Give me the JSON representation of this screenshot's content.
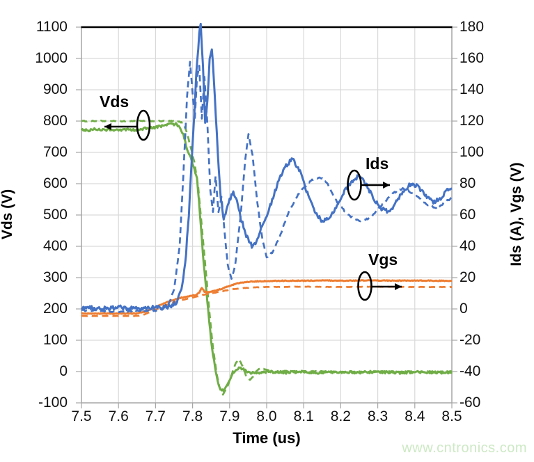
{
  "watermark": {
    "text": "www.cntronics.com",
    "color": "#cde9c5"
  },
  "chart_data": {
    "type": "line",
    "title": "",
    "xlabel": "Time (us)",
    "ylabel_left": "Vds (V)",
    "ylabel_right": "Ids (A), Vgs (V)",
    "grid": true,
    "x_range": [
      7.5,
      8.5
    ],
    "x_ticks": [
      "7.5",
      "7.6",
      "7.7",
      "7.8",
      "7.9",
      "8.0",
      "8.1",
      "8.2",
      "8.3",
      "8.4",
      "8.5"
    ],
    "left_axis": {
      "range": [
        -100,
        1100
      ],
      "ticks_top_to_bottom": [
        "1100",
        "1000",
        "900",
        "800",
        "700",
        "600",
        "500",
        "400",
        "300",
        "200",
        "100",
        "0",
        "-100"
      ]
    },
    "right_axis": {
      "range": [
        -60,
        180
      ],
      "ticks_top_to_bottom": [
        "180",
        "160",
        "140",
        "120",
        "100",
        "80",
        "60",
        "40",
        "20",
        "0",
        "-20",
        "-40",
        "-60"
      ]
    },
    "colors": {
      "vds": "#70AD47",
      "ids": "#4472C4",
      "vgs": "#ED7D31",
      "grid": "#D9D9D9",
      "axis": "#A6A6A6",
      "top_border": "#000000",
      "annotation": "#000000"
    },
    "annotations": [
      {
        "id": "vds",
        "label": "Vds",
        "arrow": "left"
      },
      {
        "id": "ids",
        "label": "Ids",
        "arrow": "right"
      },
      {
        "id": "vgs",
        "label": "Vgs",
        "arrow": "right"
      }
    ],
    "series": [
      {
        "name": "Vds dashed",
        "axis": "left",
        "color": "#70AD47",
        "style": "dashed",
        "noise": 1.5,
        "points": [
          [
            7.5,
            800
          ],
          [
            7.6,
            800
          ],
          [
            7.7,
            800
          ],
          [
            7.74,
            800
          ],
          [
            7.76,
            799
          ],
          [
            7.775,
            794
          ],
          [
            7.785,
            762
          ],
          [
            7.795,
            716
          ],
          [
            7.805,
            668
          ],
          [
            7.815,
            592
          ],
          [
            7.825,
            462
          ],
          [
            7.835,
            332
          ],
          [
            7.845,
            196
          ],
          [
            7.855,
            76
          ],
          [
            7.865,
            -6
          ],
          [
            7.873,
            -52
          ],
          [
            7.882,
            -73
          ],
          [
            7.893,
            -52
          ],
          [
            7.903,
            -18
          ],
          [
            7.915,
            24
          ],
          [
            7.925,
            39
          ],
          [
            7.935,
            18
          ],
          [
            7.945,
            -17
          ],
          [
            7.955,
            -26
          ],
          [
            7.965,
            -13
          ],
          [
            7.975,
            5
          ],
          [
            7.985,
            12
          ],
          [
            8.0,
            5
          ],
          [
            8.02,
            -4
          ],
          [
            8.05,
            2
          ],
          [
            8.1,
            0
          ],
          [
            8.15,
            1
          ],
          [
            8.2,
            -1
          ],
          [
            8.3,
            0
          ],
          [
            8.4,
            0
          ],
          [
            8.5,
            0
          ]
        ]
      },
      {
        "name": "Vds solid",
        "axis": "left",
        "color": "#70AD47",
        "style": "solid",
        "noise": 4,
        "points": [
          [
            7.5,
            774
          ],
          [
            7.52,
            770
          ],
          [
            7.54,
            775
          ],
          [
            7.56,
            771
          ],
          [
            7.58,
            774
          ],
          [
            7.6,
            769
          ],
          [
            7.62,
            773
          ],
          [
            7.64,
            771
          ],
          [
            7.66,
            775
          ],
          [
            7.68,
            777
          ],
          [
            7.7,
            779
          ],
          [
            7.72,
            786
          ],
          [
            7.74,
            791
          ],
          [
            7.755,
            790
          ],
          [
            7.765,
            783
          ],
          [
            7.775,
            757
          ],
          [
            7.785,
            712
          ],
          [
            7.795,
            681
          ],
          [
            7.805,
            646
          ],
          [
            7.812,
            616
          ],
          [
            7.82,
            505
          ],
          [
            7.83,
            345
          ],
          [
            7.84,
            220
          ],
          [
            7.85,
            100
          ],
          [
            7.858,
            32
          ],
          [
            7.868,
            -34
          ],
          [
            7.876,
            -57
          ],
          [
            7.884,
            -62
          ],
          [
            7.892,
            -48
          ],
          [
            7.9,
            -26
          ],
          [
            7.91,
            -5
          ],
          [
            7.92,
            9
          ],
          [
            7.93,
            12
          ],
          [
            7.94,
            4
          ],
          [
            7.95,
            -2
          ],
          [
            7.96,
            -5
          ],
          [
            7.98,
            -3
          ],
          [
            8.0,
            -1
          ],
          [
            8.05,
            -3
          ],
          [
            8.1,
            -1
          ],
          [
            8.15,
            -4
          ],
          [
            8.2,
            -1
          ],
          [
            8.25,
            -3
          ],
          [
            8.3,
            -1
          ],
          [
            8.35,
            -4
          ],
          [
            8.4,
            -2
          ],
          [
            8.45,
            -4
          ],
          [
            8.5,
            -2
          ]
        ]
      },
      {
        "name": "Vgs dashed",
        "axis": "right",
        "color": "#ED7D31",
        "style": "dashed",
        "noise": 0.1,
        "points": [
          [
            7.5,
            -4.5
          ],
          [
            7.6,
            -4.5
          ],
          [
            7.65,
            -4.5
          ],
          [
            7.67,
            -3.5
          ],
          [
            7.69,
            -1.5
          ],
          [
            7.71,
            0.5
          ],
          [
            7.73,
            2.5
          ],
          [
            7.75,
            4.2
          ],
          [
            7.77,
            5.5
          ],
          [
            7.79,
            6.8
          ],
          [
            7.81,
            7.8
          ],
          [
            7.83,
            9
          ],
          [
            7.85,
            10
          ],
          [
            7.87,
            10.8
          ],
          [
            7.89,
            11.8
          ],
          [
            7.91,
            12.6
          ],
          [
            7.94,
            13.4
          ],
          [
            7.97,
            13.8
          ],
          [
            8.0,
            14
          ],
          [
            8.1,
            14.2
          ],
          [
            8.2,
            14
          ],
          [
            8.3,
            14.2
          ],
          [
            8.4,
            14
          ],
          [
            8.5,
            14
          ]
        ]
      },
      {
        "name": "Vgs solid",
        "axis": "right",
        "color": "#ED7D31",
        "style": "solid",
        "noise": 0.25,
        "points": [
          [
            7.5,
            -3
          ],
          [
            7.55,
            -3
          ],
          [
            7.6,
            -3
          ],
          [
            7.63,
            -3
          ],
          [
            7.65,
            -2.8
          ],
          [
            7.67,
            -1.8
          ],
          [
            7.69,
            0
          ],
          [
            7.71,
            2.2
          ],
          [
            7.73,
            4.2
          ],
          [
            7.75,
            6
          ],
          [
            7.77,
            7.2
          ],
          [
            7.79,
            8.2
          ],
          [
            7.81,
            9
          ],
          [
            7.818,
            10.5
          ],
          [
            7.825,
            13.5
          ],
          [
            7.832,
            11
          ],
          [
            7.84,
            10.5
          ],
          [
            7.86,
            11.5
          ],
          [
            7.88,
            13
          ],
          [
            7.9,
            14.8
          ],
          [
            7.92,
            16.2
          ],
          [
            7.94,
            17
          ],
          [
            7.96,
            17.5
          ],
          [
            8.0,
            17.8
          ],
          [
            8.05,
            18
          ],
          [
            8.1,
            18
          ],
          [
            8.15,
            18.2
          ],
          [
            8.2,
            18
          ],
          [
            8.25,
            18.2
          ],
          [
            8.3,
            18.2
          ],
          [
            8.35,
            18
          ],
          [
            8.4,
            18.2
          ],
          [
            8.45,
            18
          ],
          [
            8.5,
            18
          ]
        ]
      },
      {
        "name": "Ids dashed",
        "axis": "right",
        "color": "#4472C4",
        "style": "dashed",
        "noise": 0.5,
        "points": [
          [
            7.5,
            -1
          ],
          [
            7.55,
            -1
          ],
          [
            7.6,
            -2
          ],
          [
            7.65,
            -1
          ],
          [
            7.7,
            -1
          ],
          [
            7.72,
            0
          ],
          [
            7.735,
            3
          ],
          [
            7.75,
            12
          ],
          [
            7.765,
            40
          ],
          [
            7.775,
            85
          ],
          [
            7.785,
            135
          ],
          [
            7.793,
            158
          ],
          [
            7.8,
            138
          ],
          [
            7.806,
            121
          ],
          [
            7.812,
            148
          ],
          [
            7.818,
            155
          ],
          [
            7.825,
            122
          ],
          [
            7.832,
            148
          ],
          [
            7.84,
            118
          ],
          [
            7.848,
            76
          ],
          [
            7.855,
            62
          ],
          [
            7.862,
            85
          ],
          [
            7.87,
            62
          ],
          [
            7.878,
            72
          ],
          [
            7.886,
            50
          ],
          [
            7.895,
            28
          ],
          [
            7.905,
            19
          ],
          [
            7.915,
            28
          ],
          [
            7.93,
            60
          ],
          [
            7.942,
            95
          ],
          [
            7.951,
            112
          ],
          [
            7.962,
            98
          ],
          [
            7.975,
            68
          ],
          [
            7.988,
            45
          ],
          [
            8.0,
            33
          ],
          [
            8.015,
            36
          ],
          [
            8.035,
            46
          ],
          [
            8.06,
            62
          ],
          [
            8.09,
            75
          ],
          [
            8.12,
            82
          ],
          [
            8.145,
            84
          ],
          [
            8.165,
            80
          ],
          [
            8.19,
            68
          ],
          [
            8.22,
            60
          ],
          [
            8.25,
            56
          ],
          [
            8.28,
            58
          ],
          [
            8.31,
            66
          ],
          [
            8.34,
            74
          ],
          [
            8.37,
            77
          ],
          [
            8.4,
            73
          ],
          [
            8.43,
            67
          ],
          [
            8.46,
            64
          ],
          [
            8.48,
            68
          ],
          [
            8.5,
            71
          ]
        ]
      },
      {
        "name": "Ids solid",
        "axis": "right",
        "color": "#4472C4",
        "style": "solid",
        "noise": 1.4,
        "points": [
          [
            7.5,
            1
          ],
          [
            7.55,
            0
          ],
          [
            7.6,
            1
          ],
          [
            7.65,
            0
          ],
          [
            7.7,
            1
          ],
          [
            7.72,
            1
          ],
          [
            7.74,
            2
          ],
          [
            7.755,
            4
          ],
          [
            7.77,
            12
          ],
          [
            7.78,
            28
          ],
          [
            7.79,
            60
          ],
          [
            7.8,
            105
          ],
          [
            7.81,
            150
          ],
          [
            7.818,
            176
          ],
          [
            7.822,
            182
          ],
          [
            7.828,
            156
          ],
          [
            7.834,
            118
          ],
          [
            7.84,
            132
          ],
          [
            7.846,
            160
          ],
          [
            7.852,
            167
          ],
          [
            7.86,
            136
          ],
          [
            7.868,
            100
          ],
          [
            7.876,
            72
          ],
          [
            7.884,
            58
          ],
          [
            7.892,
            64
          ],
          [
            7.9,
            70
          ],
          [
            7.91,
            74
          ],
          [
            7.92,
            68
          ],
          [
            7.93,
            58
          ],
          [
            7.945,
            47
          ],
          [
            7.96,
            40
          ],
          [
            7.975,
            44
          ],
          [
            7.99,
            54
          ],
          [
            8.01,
            66
          ],
          [
            8.03,
            80
          ],
          [
            8.05,
            91
          ],
          [
            8.07,
            96
          ],
          [
            8.09,
            88
          ],
          [
            8.11,
            74
          ],
          [
            8.13,
            62
          ],
          [
            8.15,
            56
          ],
          [
            8.17,
            58
          ],
          [
            8.19,
            66
          ],
          [
            8.21,
            75
          ],
          [
            8.23,
            82
          ],
          [
            8.25,
            85
          ],
          [
            8.27,
            79
          ],
          [
            8.29,
            70
          ],
          [
            8.31,
            64
          ],
          [
            8.33,
            62
          ],
          [
            8.35,
            68
          ],
          [
            8.37,
            76
          ],
          [
            8.39,
            80
          ],
          [
            8.41,
            78
          ],
          [
            8.43,
            72
          ],
          [
            8.45,
            68
          ],
          [
            8.47,
            71
          ],
          [
            8.49,
            76
          ],
          [
            8.5,
            77
          ]
        ]
      }
    ]
  }
}
